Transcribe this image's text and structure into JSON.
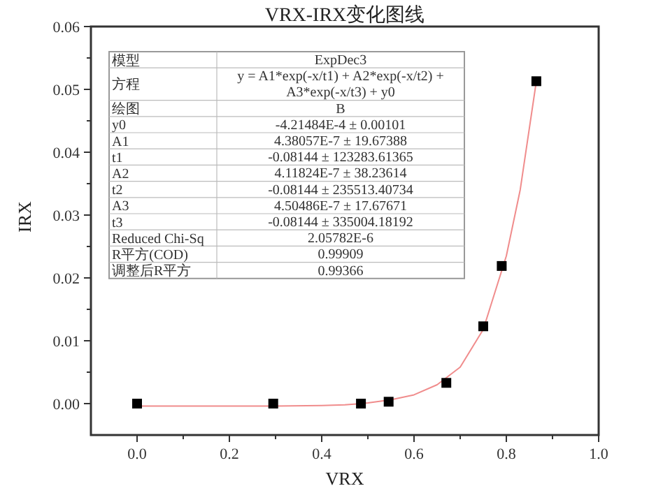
{
  "chart_data": {
    "type": "scatter",
    "title": "VRX-IRX变化图线",
    "xlabel": "VRX",
    "ylabel": "IRX",
    "xlim": [
      -0.1,
      1.0
    ],
    "xticks": [
      {
        "value": 0.0,
        "label": "0.0"
      },
      {
        "value": 0.1,
        "label": null
      },
      {
        "value": 0.2,
        "label": "0.2"
      },
      {
        "value": 0.3,
        "label": null
      },
      {
        "value": 0.4,
        "label": "0.4"
      },
      {
        "value": 0.5,
        "label": null
      },
      {
        "value": 0.6,
        "label": "0.6"
      },
      {
        "value": 0.7,
        "label": null
      },
      {
        "value": 0.8,
        "label": "0.8"
      },
      {
        "value": 0.9,
        "label": null
      },
      {
        "value": 1.0,
        "label": "1.0"
      }
    ],
    "ylim": [
      -0.005,
      0.06
    ],
    "yticks": [
      {
        "value": 0.0,
        "label": "0.00"
      },
      {
        "value": 0.005,
        "label": null
      },
      {
        "value": 0.01,
        "label": "0.01"
      },
      {
        "value": 0.015,
        "label": null
      },
      {
        "value": 0.02,
        "label": "0.02"
      },
      {
        "value": 0.025,
        "label": null
      },
      {
        "value": 0.03,
        "label": "0.03"
      },
      {
        "value": 0.035,
        "label": null
      },
      {
        "value": 0.04,
        "label": "0.04"
      },
      {
        "value": 0.045,
        "label": null
      },
      {
        "value": 0.05,
        "label": "0.05"
      },
      {
        "value": 0.055,
        "label": null
      },
      {
        "value": 0.06,
        "label": "0.06"
      }
    ],
    "grid": false,
    "series": [
      {
        "type": "line",
        "color": "#f08c8c",
        "marker": "none",
        "line_style": "solid",
        "x": [
          0,
          0.1,
          0.2,
          0.3,
          0.4,
          0.45,
          0.5,
          0.55,
          0.6,
          0.65,
          0.7,
          0.75,
          0.8,
          0.83,
          0.865
        ],
        "values": [
          -0.0004,
          -0.0004,
          -0.0004,
          -0.0004,
          -0.0003,
          -0.0002,
          0.0001,
          0.0006,
          0.0014,
          0.003,
          0.0058,
          0.0118,
          0.0235,
          0.034,
          0.0513
        ]
      },
      {
        "type": "scatter",
        "color": "#000000",
        "marker": "square",
        "x": [
          0,
          0.295,
          0.485,
          0.545,
          0.67,
          0.75,
          0.79,
          0.865
        ],
        "values": [
          0.0,
          0.0,
          0.0,
          0.0003,
          0.0033,
          0.0123,
          0.0219,
          0.0513
        ]
      }
    ],
    "annotations": [
      "模型",
      "ExpDec3",
      "方程",
      "y = A1*exp(-x/t1) + A2*exp(-x/t2) + A3*exp(-x/t3) + y0",
      "绘图",
      "B",
      "y0",
      "-4.21484E-4 ± 0.00101",
      "A1",
      "4.38057E-7 ± 19.67388",
      "t1",
      "-0.08144 ± 123283.61365",
      "A2",
      "4.11824E-7 ± 38.23614",
      "t2",
      "-0.08144 ± 235513.40734",
      "A3",
      "4.50486E-7 ± 17.67671",
      "t3",
      "-0.08144 ± 335004.18192",
      "Reduced Chi-Sq",
      "2.05782E-6",
      "R平方(COD)",
      "0.99909",
      "调整后R平方",
      "0.99366"
    ]
  }
}
